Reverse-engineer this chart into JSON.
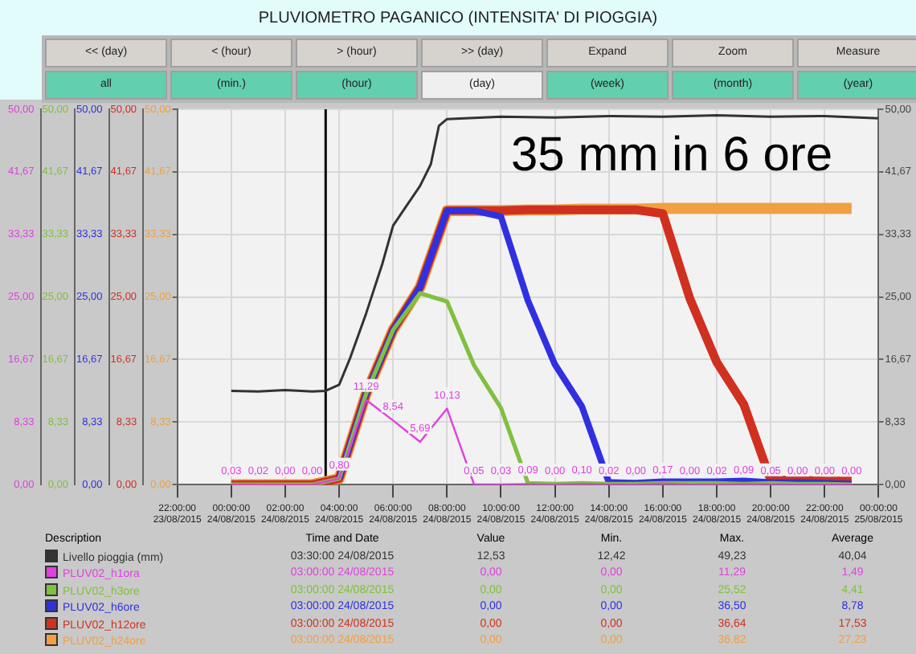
{
  "chart_data": {
    "type": "line",
    "title": "PLUVIOMETRO PAGANICO (INTENSITA' DI PIOGGIA)",
    "xlim": [
      "2015-08-23T22:00",
      "2015-08-25T00:00"
    ],
    "xticks": [
      {
        "value": "2015-08-23T22:00",
        "label": "22:00:00 23/08/2015"
      },
      {
        "value": "2015-08-24T00:00",
        "label": "00:00:00 24/08/2015"
      },
      {
        "value": "2015-08-24T02:00",
        "label": "02:00:00 24/08/2015"
      },
      {
        "value": "2015-08-24T04:00",
        "label": "04:00:00 24/08/2015"
      },
      {
        "value": "2015-08-24T06:00",
        "label": "06:00:00 24/08/2015"
      },
      {
        "value": "2015-08-24T08:00",
        "label": "08:00:00 24/08/2015"
      },
      {
        "value": "2015-08-24T10:00",
        "label": "10:00:00 24/08/2015"
      },
      {
        "value": "2015-08-24T12:00",
        "label": "12:00:00 24/08/2015"
      },
      {
        "value": "2015-08-24T14:00",
        "label": "14:00:00 24/08/2015"
      },
      {
        "value": "2015-08-24T16:00",
        "label": "16:00:00 24/08/2015"
      },
      {
        "value": "2015-08-24T18:00",
        "label": "18:00:00 24/08/2015"
      },
      {
        "value": "2015-08-24T20:00",
        "label": "20:00:00 24/08/2015"
      },
      {
        "value": "2015-08-24T22:00",
        "label": "22:00:00 24/08/2015"
      },
      {
        "value": "2015-08-25T00:00",
        "label": "00:00:00 25/08/2015"
      }
    ],
    "ylim": [
      0,
      50
    ],
    "yticks": [
      {
        "value": 0,
        "label": "0,00"
      },
      {
        "value": 8.33,
        "label": "8,33"
      },
      {
        "value": 16.67,
        "label": "16,67"
      },
      {
        "value": 25,
        "label": "25,00"
      },
      {
        "value": 33.33,
        "label": "33,33"
      },
      {
        "value": 41.67,
        "label": "41,67"
      },
      {
        "value": 50,
        "label": "50,00"
      }
    ],
    "y2lim": [
      0,
      50
    ],
    "y2ticks": [
      {
        "value": 0,
        "label": "0,00"
      },
      {
        "value": 8.33,
        "label": "8,33"
      },
      {
        "value": 16.67,
        "label": "16,67"
      },
      {
        "value": 25,
        "label": "25,00"
      },
      {
        "value": 33.33,
        "label": "33,33"
      },
      {
        "value": 41.67,
        "label": "41,67"
      },
      {
        "value": 50,
        "label": "50,00"
      }
    ],
    "x": [
      "2015-08-24T00:00",
      "2015-08-24T01:00",
      "2015-08-24T02:00",
      "2015-08-24T03:00",
      "2015-08-24T04:00",
      "2015-08-24T05:00",
      "2015-08-24T06:00",
      "2015-08-24T07:00",
      "2015-08-24T08:00",
      "2015-08-24T09:00",
      "2015-08-24T10:00",
      "2015-08-24T11:00",
      "2015-08-24T12:00",
      "2015-08-24T13:00",
      "2015-08-24T14:00",
      "2015-08-24T15:00",
      "2015-08-24T16:00",
      "2015-08-24T17:00",
      "2015-08-24T18:00",
      "2015-08-24T19:00",
      "2015-08-24T20:00",
      "2015-08-24T21:00",
      "2015-08-24T22:00",
      "2015-08-24T23:00"
    ],
    "series": [
      {
        "name": "Livello pioggia (mm)",
        "color": "#333333",
        "axis": "y2",
        "x": [
          "2015-08-24T00:00",
          "2015-08-24T01:00",
          "2015-08-24T02:00",
          "2015-08-24T03:00",
          "2015-08-24T03:30",
          "2015-08-24T04:00",
          "2015-08-24T04:24",
          "2015-08-24T05:00",
          "2015-08-24T05:36",
          "2015-08-24T06:00",
          "2015-08-24T07:00",
          "2015-08-24T07:24",
          "2015-08-24T07:42",
          "2015-08-24T08:00",
          "2015-08-24T10:00",
          "2015-08-24T12:00",
          "2015-08-24T14:00",
          "2015-08-24T16:00",
          "2015-08-24T18:00",
          "2015-08-24T20:00",
          "2015-08-24T22:00",
          "2015-08-25T00:00"
        ],
        "values": [
          12.5,
          12.4,
          12.6,
          12.4,
          12.5,
          13.3,
          16.8,
          22.8,
          29.4,
          34.5,
          39.8,
          42.7,
          47.8,
          48.7,
          49.0,
          48.9,
          49.1,
          49.0,
          49.2,
          49.0,
          49.1,
          48.8
        ]
      },
      {
        "name": "PLUV02_h1ora",
        "color": "#e040e0",
        "values": [
          0.03,
          0.02,
          0.0,
          0.0,
          0.8,
          11.29,
          8.54,
          5.69,
          10.13,
          0.05,
          0.03,
          0.09,
          0.0,
          0.1,
          0.02,
          0.0,
          0.17,
          0.0,
          0.02,
          0.09,
          0.05,
          0.0,
          0.0,
          0.0
        ],
        "value_labels": [
          "0,03",
          "0,02",
          "0,00",
          "0,00",
          "0,80",
          "11,29",
          "8,54",
          "5,69",
          "10,13",
          "0,05",
          "0,03",
          "0,09",
          "0,00",
          "0,10",
          "0,02",
          "0,00",
          "0,17",
          "0,00",
          "0,02",
          "0,09",
          "0,05",
          "0,00",
          "0,00",
          "0,00"
        ]
      },
      {
        "name": "PLUV02_h3ore",
        "color": "#80c040",
        "values": [
          0,
          0,
          0,
          0,
          0.8,
          12.1,
          20.6,
          25.5,
          24.4,
          15.9,
          10.2,
          0.2,
          0.1,
          0.2,
          0.1,
          0.1,
          0.2,
          0.2,
          0.2,
          0.1,
          0.2,
          0.1,
          0.1,
          0
        ]
      },
      {
        "name": "PLUV02_h6ore",
        "color": "#3030e0",
        "values": [
          null,
          null,
          null,
          null,
          0.8,
          12.1,
          20.6,
          26.3,
          36.5,
          36.5,
          35.7,
          24.5,
          16.0,
          10.4,
          0.3,
          0.2,
          0.4,
          0.4,
          0.4,
          0.5,
          0.3,
          0.3,
          0.2,
          0.1
        ]
      },
      {
        "name": "PLUV02_h12ore",
        "color": "#d03020",
        "values": [
          0,
          0,
          0,
          0,
          0.8,
          12.1,
          20.6,
          26.3,
          36.5,
          36.5,
          36.5,
          36.6,
          36.6,
          36.6,
          36.6,
          36.6,
          36.1,
          24.8,
          16.3,
          10.7,
          0.6,
          0.6,
          0.5,
          0.5
        ]
      },
      {
        "name": "PLUV02_h24ore",
        "color": "#f0a040",
        "values": [
          0,
          0,
          0,
          0,
          0.8,
          12.1,
          20.6,
          26.3,
          36.5,
          36.5,
          36.5,
          36.6,
          36.6,
          36.7,
          36.7,
          36.7,
          36.8,
          36.8,
          36.8,
          36.8,
          36.8,
          36.8,
          36.8,
          36.8
        ]
      }
    ],
    "ref_lines": [
      {
        "axis": "x",
        "value": "2015-08-24T03:30",
        "color": "#000000"
      }
    ],
    "grid": true,
    "legend": "bottom",
    "marker": "none",
    "annotations": [
      "<< (day)",
      "< (hour)",
      "> (hour)",
      ">> (day)",
      "Expand",
      "Zoom",
      "Measure",
      "all",
      "(min.)",
      "(hour)",
      "(day)",
      "(week)",
      "(month)",
      "(year)",
      "35 mm in 6 ore",
      "Description",
      "Time and Date",
      "Value",
      "Min.",
      "Max.",
      "Average",
      "03:30:00 24/08/2015",
      "12,53",
      "12,42",
      "49,23",
      "40,04",
      "03:00:00 24/08/2015",
      "0,00",
      "0,00",
      "11,29",
      "1,49",
      "03:00:00 24/08/2015",
      "0,00",
      "0,00",
      "25,52",
      "4,41",
      "03:00:00 24/08/2015",
      "0,00",
      "0,00",
      "36,50",
      "8,78",
      "03:00:00 24/08/2015",
      "0,00",
      "0,00",
      "36,64",
      "17,53",
      "03:00:00 24/08/2015",
      "0,00",
      "0,00",
      "36,82",
      "27,23"
    ]
  }
}
